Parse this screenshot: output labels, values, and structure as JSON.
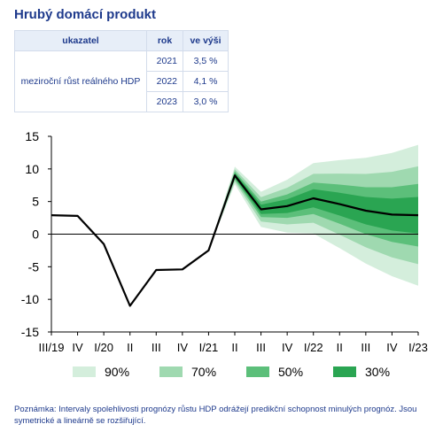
{
  "title": "Hrubý domácí produkt",
  "table": {
    "headers": [
      "ukazatel",
      "rok",
      "ve výši"
    ],
    "indicator": "meziroční růst reálného HDP",
    "rows": [
      {
        "year": "2021",
        "value": "3,5 %"
      },
      {
        "year": "2022",
        "value": "4,1 %"
      },
      {
        "year": "2023",
        "value": "3,0 %"
      }
    ]
  },
  "note": "Poznámka: Intervaly spolehlivosti prognózy růstu HDP odrážejí predikční schopnost minulých prognóz. Jsou symetrické a lineárně se rozšiřující.",
  "chart_data": {
    "type": "line",
    "categories": [
      "III/19",
      "IV",
      "I/20",
      "II",
      "III",
      "IV",
      "I/21",
      "II",
      "III",
      "IV",
      "I/22",
      "II",
      "III",
      "IV",
      "I/23"
    ],
    "ylim": [
      -15,
      15
    ],
    "yticks": [
      -15,
      -10,
      -5,
      0,
      5,
      10,
      15
    ],
    "series": [
      {
        "values": [
          2.9,
          2.8,
          -1.5,
          -11.0,
          -5.5,
          -5.4,
          -2.5,
          9.0,
          3.8,
          4.3,
          5.5,
          4.6,
          3.6,
          3.0,
          2.9
        ]
      }
    ],
    "forecast_start_index": 6,
    "fan_width_at_end": {
      "90%": 10.8,
      "70%": 7.5,
      "50%": 4.8,
      "30%": 2.8
    },
    "legend": [
      {
        "label": "90%",
        "color": "#d4eedc"
      },
      {
        "label": "70%",
        "color": "#9fd9b0"
      },
      {
        "label": "50%",
        "color": "#5cbf7a"
      },
      {
        "label": "30%",
        "color": "#2aa552"
      }
    ],
    "line_color": "#000000",
    "zero_line": true,
    "legend_position": "bottom"
  }
}
